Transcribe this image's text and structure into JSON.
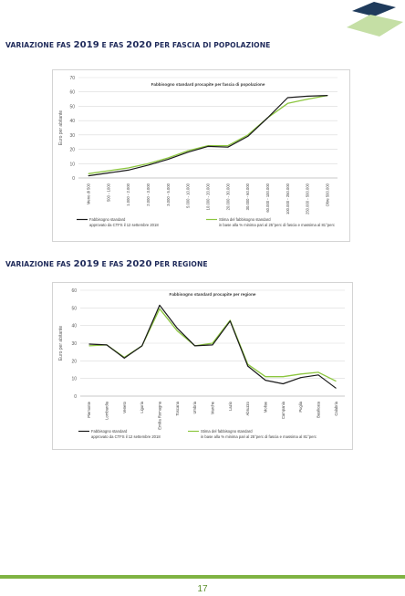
{
  "page": {
    "title1_pre": "VARIAZIONE FAS ",
    "title1_y1": "2019",
    "title1_mid": " E FAS ",
    "title1_y2": "2020",
    "title1_post": " PER FASCIA DI POPOLAZIONE",
    "title2_pre": "VARIAZIONE FAS ",
    "title2_y1": "2019",
    "title2_mid": " E FAS ",
    "title2_y2": "2020",
    "title2_post": " PER REGIONE",
    "page_number": "17"
  },
  "colors": {
    "title": "#1f2a5a",
    "series_black": "#1a1a1a",
    "series_green": "#8cc63f",
    "footer": "#7fb343",
    "logo_dark": "#1f3b5c",
    "logo_light": "#c5dfa5"
  },
  "chart_data": [
    {
      "type": "line",
      "title": "Fabbisogno standard procapite per fascia di popolazione",
      "ylabel": "Euro per abitante",
      "ylim": [
        0,
        70
      ],
      "yticks": [
        0,
        10,
        20,
        30,
        40,
        50,
        60,
        70
      ],
      "grid": true,
      "legend_position": "bottom",
      "categories": [
        "Meno di 500",
        "500 - 1000",
        "1.000 - 2.000",
        "2.000 - 3.000",
        "3.000 - 5.000",
        "5.000 - 10.000",
        "10.000 - 20.000",
        "20.000 - 30.000",
        "30.000 - 60.000",
        "60.000 - 100.000",
        "100.000 - 250.000",
        "250.000 - 500.000",
        "Oltre 500.000"
      ],
      "series": [
        {
          "name": "Fabbisogno standard approvato da CTFS il 12 settembre 2018",
          "legend_line1": "Fabbisogno standard",
          "legend_line2": "approvato da CTFS il 12 settembre 2018",
          "color": "#1a1a1a",
          "values": [
            1.5,
            3.5,
            5.5,
            9,
            13,
            18,
            22,
            21.5,
            29,
            42,
            56,
            57,
            57.5
          ]
        },
        {
          "name": "Stima del fabbisogno standard in base alla % minima pari al 25°perc di fascia e massima al 81°perc",
          "legend_line1": "Stima del fabbisogno standard",
          "legend_line2": "in base alla % minima pari al 25°perc di fascia e massima al 81°perc",
          "color": "#8cc63f",
          "values": [
            3,
            5,
            7,
            10,
            14,
            19,
            22.5,
            22.5,
            30,
            42,
            52,
            55,
            57.5
          ]
        }
      ]
    },
    {
      "type": "line",
      "title": "Fabbisogno standard procapite per regione",
      "ylabel": "Euro per abitante",
      "ylim": [
        0,
        60
      ],
      "yticks": [
        0,
        10,
        20,
        30,
        40,
        50,
        60
      ],
      "grid": true,
      "legend_position": "bottom",
      "categories": [
        "Piemonte",
        "Lombardia",
        "Veneto",
        "Liguria",
        "Emilia Romagna",
        "Toscana",
        "Umbria",
        "Marche",
        "Lazio",
        "Abruzzo",
        "Molise",
        "Campania",
        "Puglia",
        "Basilicata",
        "Calabria"
      ],
      "series": [
        {
          "name": "Fabbisogno standard approvato da CTFS il 12 settembre 2018",
          "legend_line1": "Fabbisogno standard",
          "legend_line2": "approvato da CTFS il 12 settembre 2018",
          "color": "#1a1a1a",
          "values": [
            29.5,
            29,
            21.5,
            28.5,
            51.5,
            38.5,
            28.5,
            29,
            42.5,
            17,
            9,
            7,
            10.5,
            12,
            4.5
          ]
        },
        {
          "name": "Stima del fabbisogno standard in base alla % minima pari al 25°perc di fascia e massima al 81°perc",
          "legend_line1": "Stima del fabbisogno standard",
          "legend_line2": "in base alla % minima pari al 25°perc di fascia e massima al 81°perc",
          "color": "#8cc63f",
          "values": [
            28.5,
            29,
            22,
            28.5,
            49.5,
            37,
            28.5,
            30,
            43,
            18,
            11,
            11,
            12.5,
            13.5,
            8.5
          ]
        }
      ]
    }
  ]
}
